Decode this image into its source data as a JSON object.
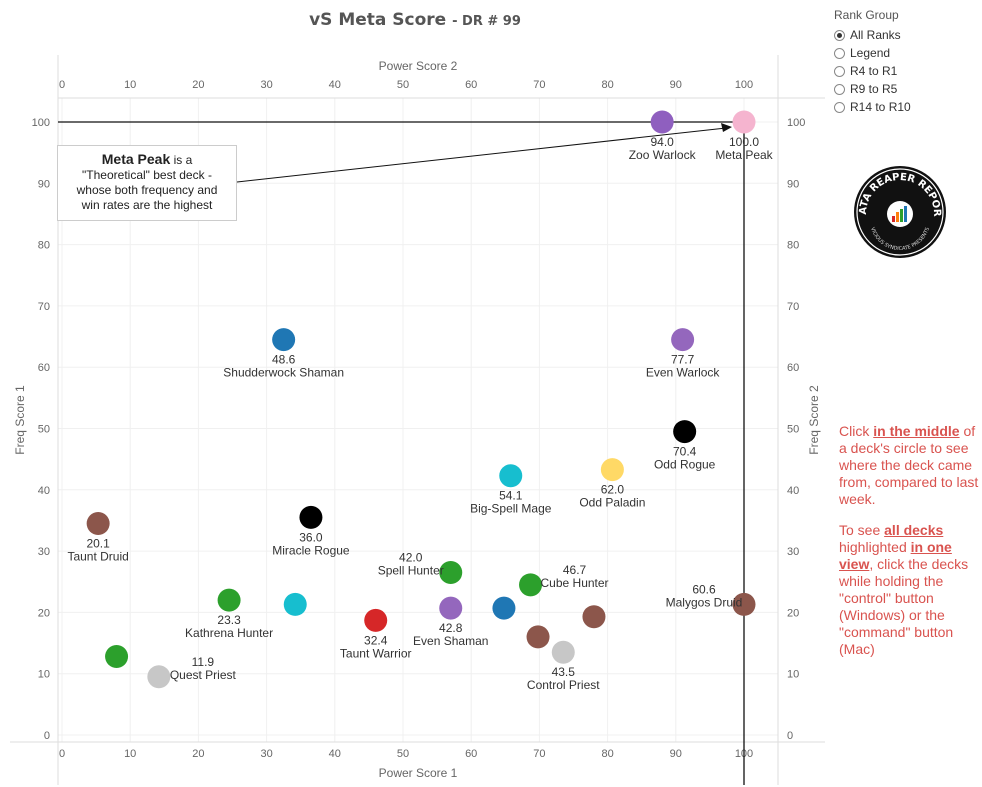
{
  "title": {
    "main": "vS Meta Score",
    "sub": "- DR # 99"
  },
  "rank_group": {
    "title": "Rank Group",
    "options": [
      {
        "label": "All Ranks",
        "selected": true
      },
      {
        "label": "Legend",
        "selected": false
      },
      {
        "label": "R4 to R1",
        "selected": false
      },
      {
        "label": "R9 to R5",
        "selected": false
      },
      {
        "label": "R14 to R10",
        "selected": false
      }
    ]
  },
  "annotation": {
    "strong": "Meta Peak",
    "line1_rest": " is a",
    "line2": "\"Theoretical\" best deck -",
    "line3": "whose both frequency and",
    "line4": "win rates are the highest"
  },
  "side_note": {
    "p1": {
      "pre": "Click ",
      "bold": "in the middle",
      "post": " of a deck's circle to see where the deck came from, compared to last week."
    },
    "p2": {
      "pre": "To see ",
      "bold1": "all decks ",
      "mid1": " highlighted ",
      "bold2": "in one view",
      "post": ", click the decks while holding the \"control\" button (Windows) or the \"command\" button (Mac)"
    }
  },
  "logo": {
    "text": "DATA REAPER REPORT",
    "subtext": "VICIOUS SYNDICATE PRESENTS"
  },
  "chart_data": {
    "type": "scatter",
    "xlabel": "Power Score 1",
    "x2label": "Power Score 2",
    "ylabel": "Freq Score 1",
    "y2label": "Freq Score 2",
    "xlim": [
      0,
      105
    ],
    "ylim": [
      -1,
      105
    ],
    "xticks": [
      0,
      10,
      20,
      30,
      40,
      50,
      60,
      70,
      80,
      90,
      100
    ],
    "yticks": [
      0,
      10,
      20,
      30,
      40,
      50,
      60,
      70,
      80,
      90,
      100
    ],
    "grid": true,
    "reference_lines": {
      "x": 100,
      "y": 100
    },
    "points": [
      {
        "name": "Meta Peak",
        "score": "100.0",
        "x": 100,
        "y": 100,
        "color": "#f5b4cf",
        "label_pos": "below"
      },
      {
        "name": "Zoo Warlock",
        "score": "94.0",
        "x": 88,
        "y": 100,
        "color": "#8f5fbf",
        "label_pos": "below"
      },
      {
        "name": "Shudderwock Shaman",
        "score": "48.6",
        "x": 32.5,
        "y": 64.5,
        "color": "#1f77b4",
        "label_pos": "below"
      },
      {
        "name": "Even Warlock",
        "score": "77.7",
        "x": 91,
        "y": 64.5,
        "color": "#9467bd",
        "label_pos": "below"
      },
      {
        "name": "Odd Rogue",
        "score": "70.4",
        "x": 91.3,
        "y": 49.5,
        "color": "#000000",
        "label_pos": "below"
      },
      {
        "name": "Odd Paladin",
        "score": "62.0",
        "x": 80.7,
        "y": 43.3,
        "color": "#ffd966",
        "label_pos": "below"
      },
      {
        "name": "Big-Spell Mage",
        "score": "54.1",
        "x": 65.8,
        "y": 42.3,
        "color": "#17becf",
        "label_pos": "below"
      },
      {
        "name": "Miracle Rogue",
        "score": "36.0",
        "x": 36.5,
        "y": 35.5,
        "color": "#000000",
        "label_pos": "below"
      },
      {
        "name": "Taunt Druid",
        "score": "20.1",
        "x": 5.3,
        "y": 34.5,
        "color": "#8c564b",
        "label_pos": "below"
      },
      {
        "name": "Spell Hunter",
        "score": "42.0",
        "x": 57,
        "y": 26.5,
        "color": "#2ca02c",
        "label_pos": "left"
      },
      {
        "name": "Cube Hunter",
        "score": "46.7",
        "x": 68.7,
        "y": 24.5,
        "color": "#2ca02c",
        "label_pos": "right"
      },
      {
        "name": "Kathrena Hunter",
        "score": "23.3",
        "x": 24.5,
        "y": 22,
        "color": "#2ca02c",
        "label_pos": "below"
      },
      {
        "name": "",
        "score": "",
        "x": 34.2,
        "y": 21.3,
        "color": "#17becf",
        "label_pos": "none"
      },
      {
        "name": "Even Shaman",
        "score": "42.8",
        "x": 57,
        "y": 20.7,
        "color": "#9467bd",
        "label_pos": "below"
      },
      {
        "name": "",
        "score": "",
        "x": 64.8,
        "y": 20.7,
        "color": "#1f77b4",
        "label_pos": "none"
      },
      {
        "name": "Malygos Druid",
        "score": "60.6",
        "x": 100,
        "y": 21.3,
        "color": "#8c564b",
        "label_pos": "left"
      },
      {
        "name": "",
        "score": "",
        "x": 78,
        "y": 19.3,
        "color": "#8c564b",
        "label_pos": "none"
      },
      {
        "name": "Taunt Warrior",
        "score": "32.4",
        "x": 46,
        "y": 18.7,
        "color": "#d62728",
        "label_pos": "below"
      },
      {
        "name": "",
        "score": "",
        "x": 69.8,
        "y": 16,
        "color": "#8c564b",
        "label_pos": "none"
      },
      {
        "name": "Control Priest",
        "score": "43.5",
        "x": 73.5,
        "y": 13.5,
        "color": "#c7c7c7",
        "label_pos": "below"
      },
      {
        "name": "",
        "score": "",
        "x": 8,
        "y": 12.8,
        "color": "#2ca02c",
        "label_pos": "none"
      },
      {
        "name": "Quest Priest",
        "score": "11.9",
        "x": 14.2,
        "y": 9.5,
        "color": "#c7c7c7",
        "label_pos": "right"
      }
    ]
  }
}
